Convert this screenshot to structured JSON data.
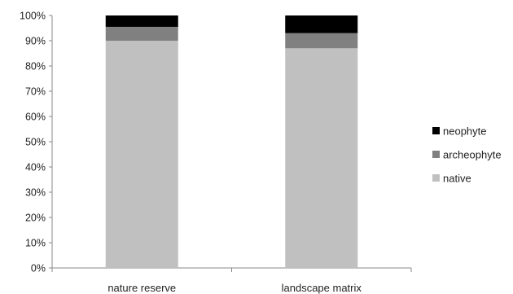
{
  "chart_data": {
    "type": "bar",
    "stacked": true,
    "categories": [
      "nature reserve",
      "landscape matrix"
    ],
    "series": [
      {
        "name": "native",
        "values": [
          90,
          87
        ],
        "color": "#c0c0c0"
      },
      {
        "name": "archeophyte",
        "values": [
          5.5,
          6
        ],
        "color": "#808080"
      },
      {
        "name": "neophyte",
        "values": [
          4.5,
          7
        ],
        "color": "#000000"
      }
    ],
    "ylim": [
      0,
      100
    ],
    "yticks": [
      "0%",
      "10%",
      "20%",
      "30%",
      "40%",
      "50%",
      "60%",
      "70%",
      "80%",
      "90%",
      "100%"
    ],
    "grid": false,
    "legend_position": "right",
    "legend_order": [
      "neophyte",
      "archeophyte",
      "native"
    ]
  }
}
